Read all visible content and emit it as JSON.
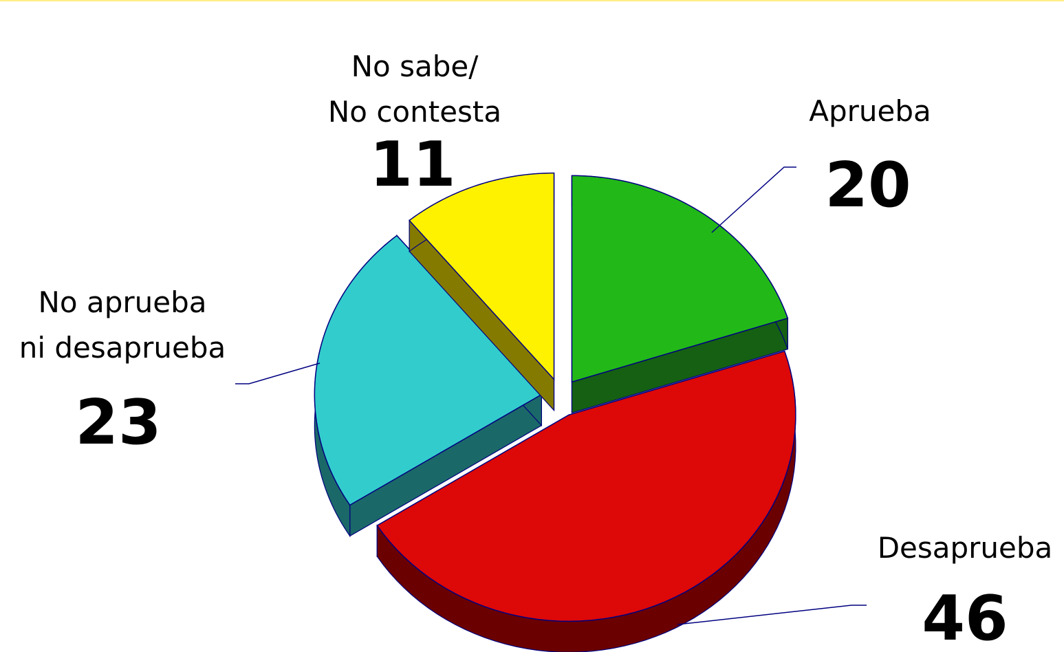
{
  "chart_data": {
    "type": "pie",
    "categories": [
      "Aprueba",
      "Desaprueba",
      "No aprueba\nni desaprueba",
      "No sabe/\nNo contesta"
    ],
    "values": [
      20,
      46,
      23,
      11
    ],
    "colors": [
      "#22b818",
      "#dd0808",
      "#33cccc",
      "#fff200"
    ],
    "side_colors": [
      "#156012",
      "#6b0000",
      "#1b6868",
      "#857a00"
    ]
  }
}
